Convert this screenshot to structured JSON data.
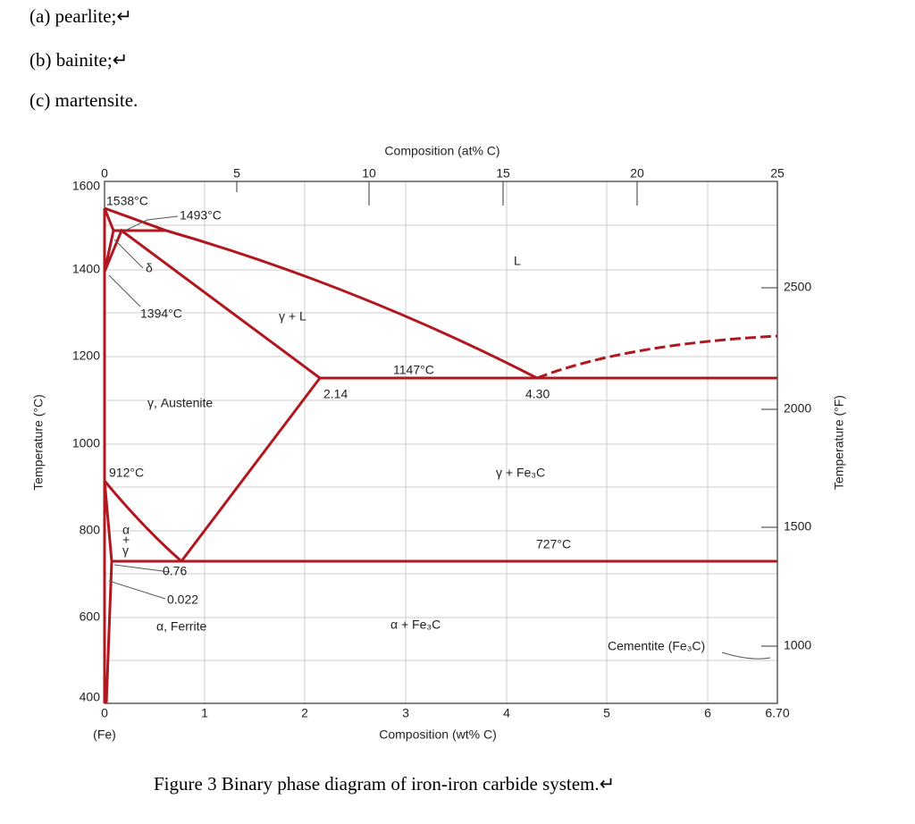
{
  "list": [
    "(a) pearlite;↵",
    "(b) bainite;↵",
    "(c) martensite."
  ],
  "figure": {
    "top_axis_label": "Composition (at% C)",
    "top_ticks": [
      "0",
      "5",
      "10",
      "15",
      "20",
      "25"
    ],
    "bottom_axis_label": "Composition (wt% C)",
    "bottom_ticks": [
      "0",
      "1",
      "2",
      "3",
      "4",
      "5",
      "6",
      "6.70"
    ],
    "bottom_note": "(Fe)",
    "left_axis_label": "Temperature (°C)",
    "left_ticks": [
      "1600",
      "1400",
      "1200",
      "1000",
      "800",
      "600",
      "400"
    ],
    "right_axis_label": "Temperature (°F)",
    "right_ticks": [
      "2500",
      "2000",
      "1500",
      "1000"
    ],
    "labels": [
      "1538°C",
      "1493°C",
      "δ",
      "1394°C",
      "γ + L",
      "L",
      "1147°C",
      "2.14",
      "4.30",
      "γ, Austenite",
      "912°C",
      "γ + Fe₃C",
      "727°C",
      "α",
      "+",
      "γ",
      "0.76",
      "0.022",
      "α, Ferrite",
      "α + Fe₃C",
      "Cementite (Fe₃C)"
    ]
  },
  "caption": "Figure 3 Binary phase diagram of iron-iron carbide system.↵"
}
